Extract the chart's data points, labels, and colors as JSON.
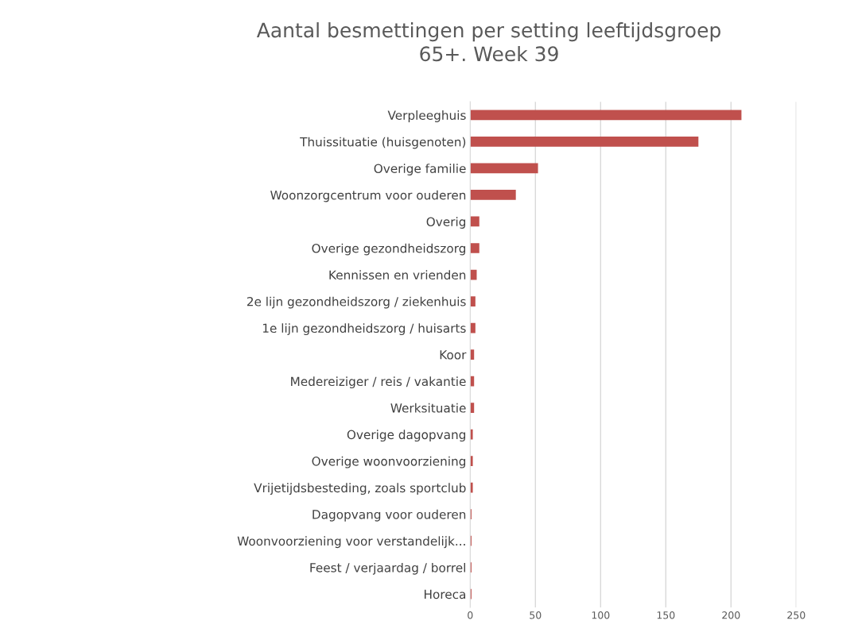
{
  "chart_data": {
    "type": "bar",
    "orientation": "horizontal",
    "title": "Aantal besmettingen per setting leeftijdsgroep\n65+. Week 39",
    "categories": [
      "Verpleeghuis",
      "Thuissituatie (huisgenoten)",
      "Overige familie",
      "Woonzorgcentrum voor ouderen",
      "Overig",
      "Overige gezondheidszorg",
      "Kennissen en vrienden",
      "2e lijn gezondheidszorg / ziekenhuis",
      "1e lijn gezondheidszorg / huisarts",
      "Koor",
      "Medereiziger / reis / vakantie",
      "Werksituatie",
      "Overige dagopvang",
      "Overige woonvoorziening",
      "Vrijetijdsbesteding, zoals sportclub",
      "Dagopvang voor ouderen",
      "Woonvoorziening voor verstandelijk...",
      "Feest / verjaardag / borrel",
      "Horeca"
    ],
    "values": [
      208,
      175,
      52,
      35,
      7,
      7,
      5,
      4,
      4,
      3,
      3,
      3,
      2,
      2,
      2,
      1,
      1,
      1,
      1
    ],
    "color": "#c0504d",
    "xlim": [
      0,
      250
    ],
    "xticks": [
      0,
      50,
      100,
      150,
      200,
      250
    ],
    "grid": "x",
    "legend": false
  }
}
